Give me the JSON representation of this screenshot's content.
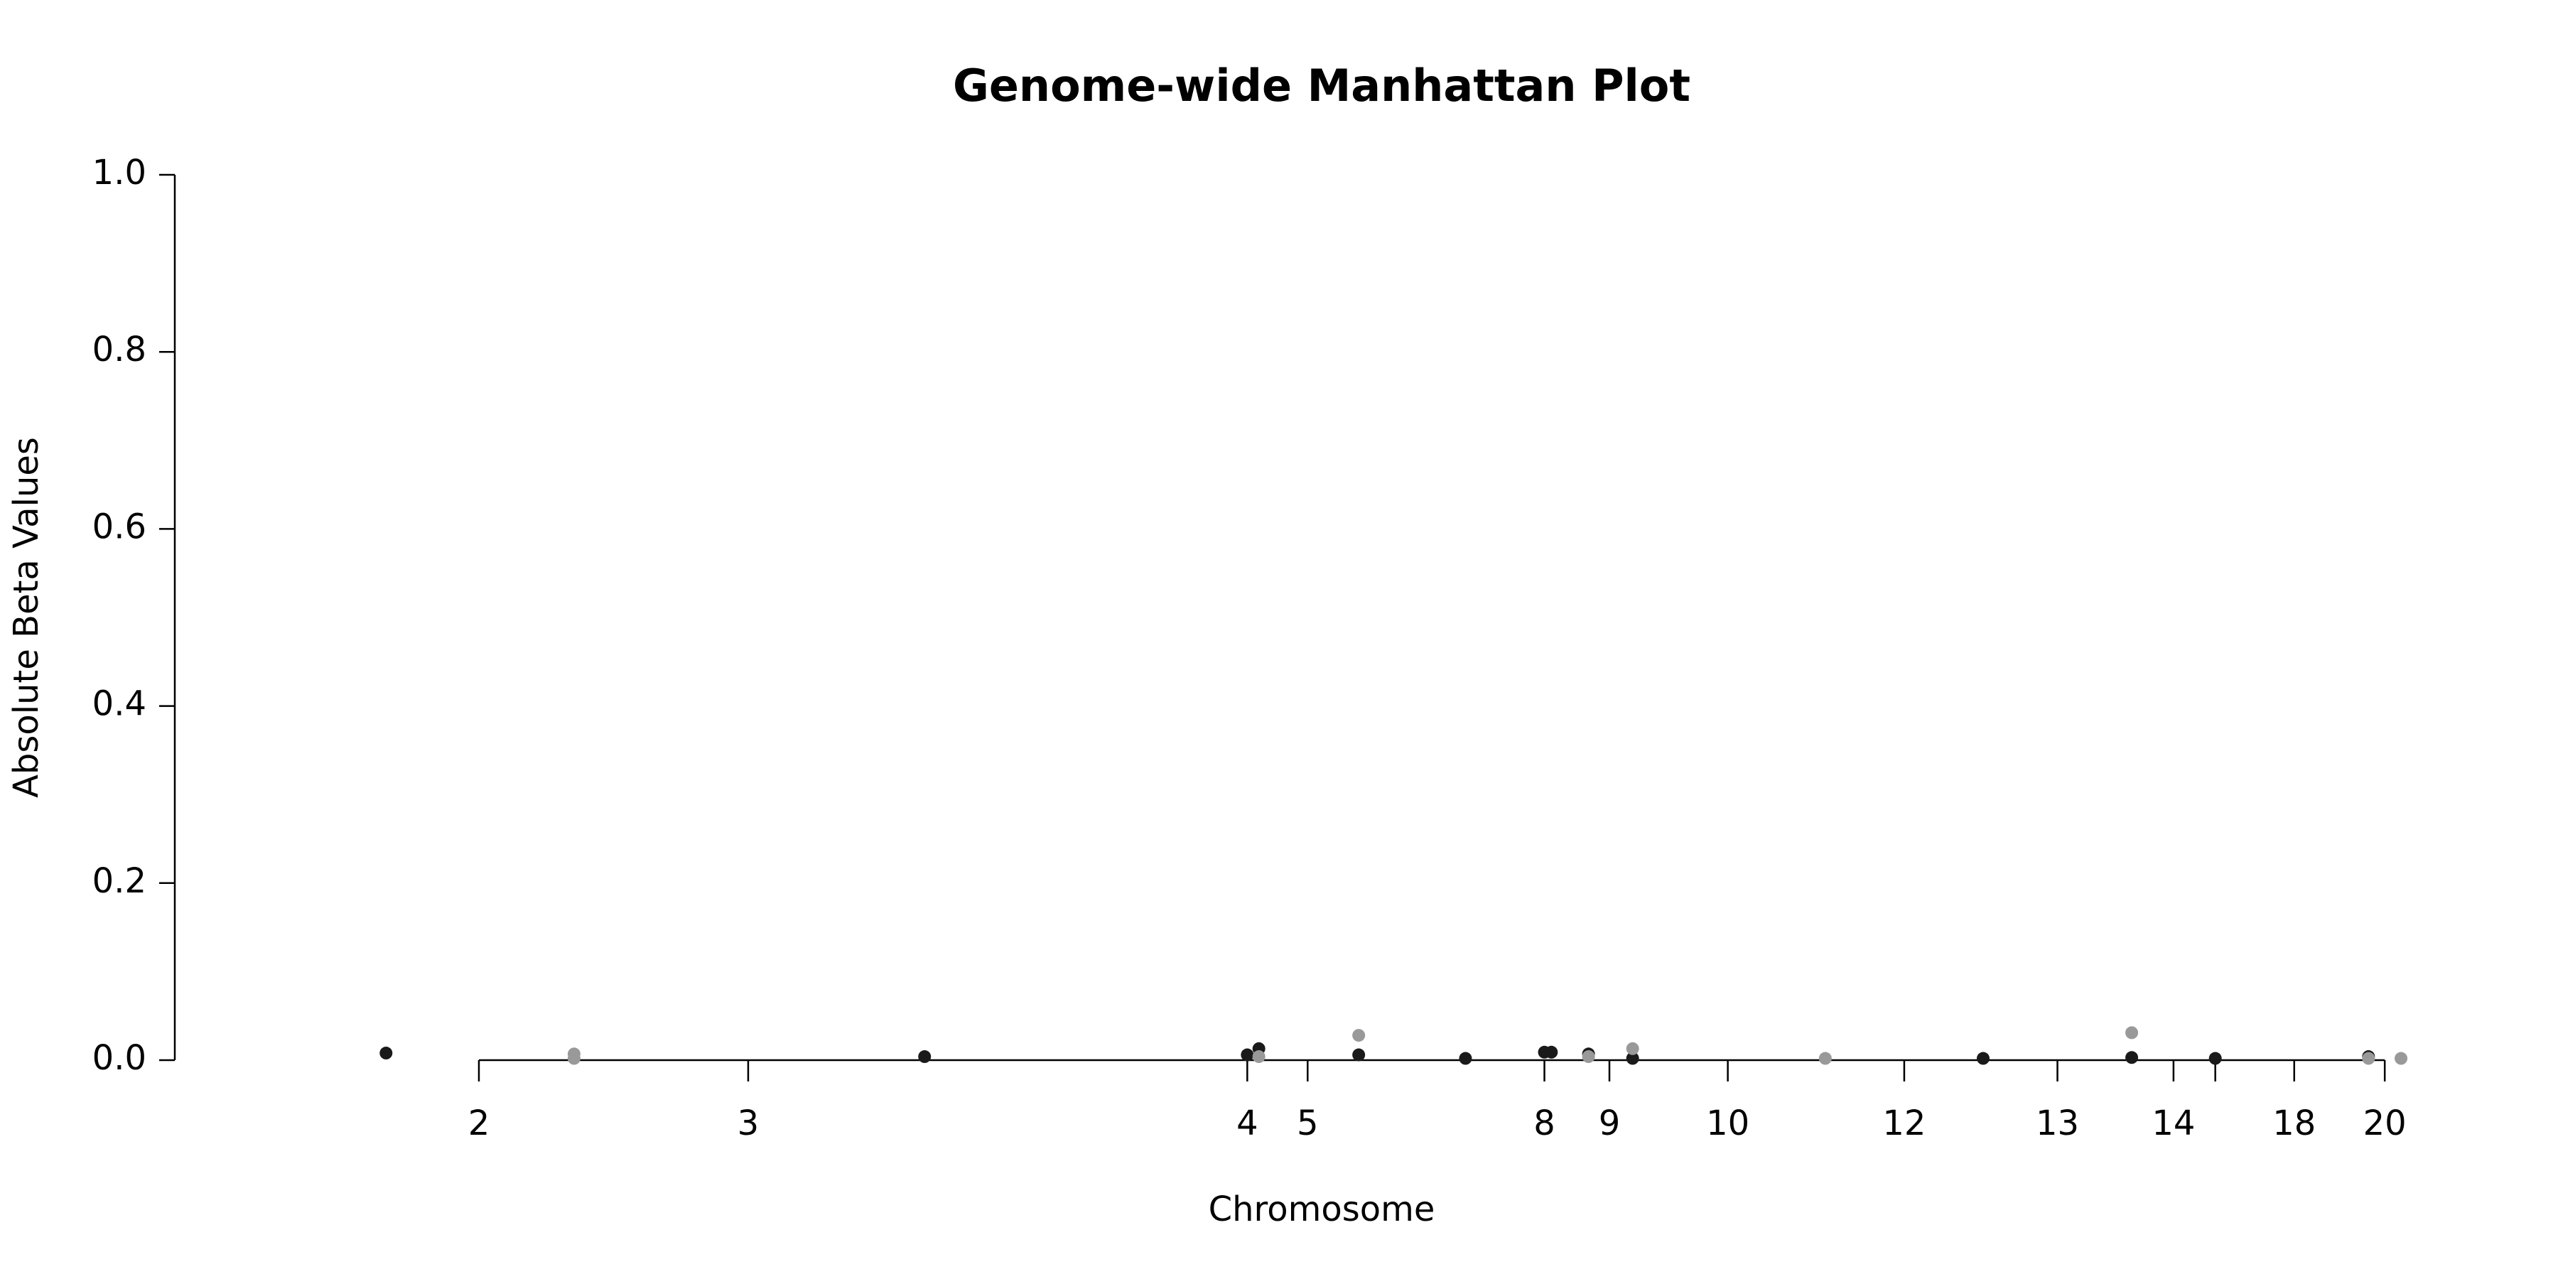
{
  "chart_data": {
    "type": "scatter",
    "title": "Genome-wide Manhattan Plot",
    "x_label": "Chromosome",
    "y_label": "Absolute Beta Values",
    "xlim": [
      0,
      1000
    ],
    "ylim": [
      0,
      1
    ],
    "xticks": [
      {
        "value": 131,
        "label": "2"
      },
      {
        "value": 247,
        "label": "3"
      },
      {
        "value": 462,
        "label": "4"
      },
      {
        "value": 488,
        "label": "5"
      },
      {
        "value": 590,
        "label": "8"
      },
      {
        "value": 618,
        "label": "9"
      },
      {
        "value": 669,
        "label": "10"
      },
      {
        "value": 745,
        "label": "12"
      },
      {
        "value": 811,
        "label": "13"
      },
      {
        "value": 861,
        "label": "14"
      },
      {
        "value": 879,
        "label": null
      },
      {
        "value": 913,
        "label": "18"
      },
      {
        "value": 952,
        "label": "20"
      }
    ],
    "yticks": [
      {
        "value": 0,
        "label": "0.0"
      },
      {
        "value": 0.2,
        "label": "0.2"
      },
      {
        "value": 0.4,
        "label": "0.4"
      },
      {
        "value": 0.6,
        "label": "0.6"
      },
      {
        "value": 0.8,
        "label": "0.8"
      },
      {
        "value": 1,
        "label": "1.0"
      }
    ],
    "series": [
      {
        "color": "#1a1a1a",
        "x": [
          91,
          323,
          462,
          467,
          510,
          556,
          590,
          593,
          609,
          628,
          779,
          843,
          879,
          945
        ],
        "values": [
          0.008,
          0.004,
          0.006,
          0.013,
          0.006,
          0.002,
          0.009,
          0.009,
          0.007,
          0.002,
          0.002,
          0.003,
          0.002,
          0.004
        ]
      },
      {
        "color": "#999999",
        "x": [
          172,
          172,
          467,
          510,
          609,
          628,
          711,
          843,
          945,
          959
        ],
        "values": [
          0.007,
          0.002,
          0.004,
          0.028,
          0.004,
          0.013,
          0.002,
          0.031,
          0.002,
          0.002
        ]
      }
    ]
  }
}
